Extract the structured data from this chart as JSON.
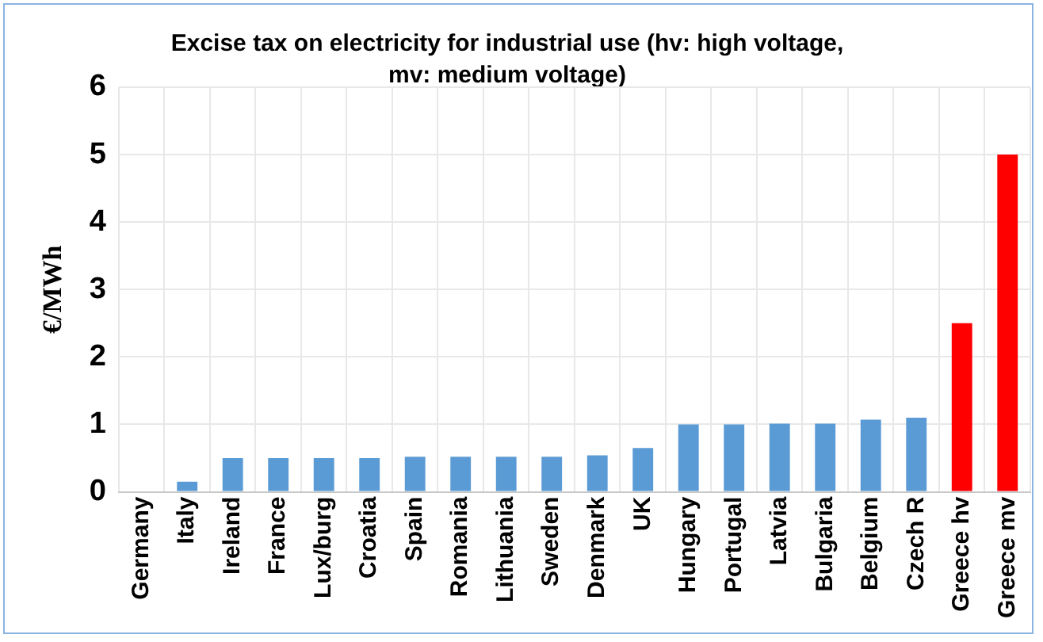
{
  "chart_data": {
    "type": "bar",
    "title": "Excise tax on electricity for industrial use (hv: high voltage, mv: medium voltage)",
    "ylabel": "€/MWh",
    "categories": [
      "Germany",
      "Italy",
      "Ireland",
      "France",
      "Lux/burg",
      "Croatia",
      "Spain",
      "Romania",
      "Lithuania",
      "Sweden",
      "Denmark",
      "UK",
      "Hungary",
      "Portugal",
      "Latvia",
      "Bulgaria",
      "Belgium",
      "Czech R",
      "Greece hv",
      "Greece mv"
    ],
    "values": [
      0,
      0.15,
      0.5,
      0.5,
      0.5,
      0.5,
      0.52,
      0.52,
      0.52,
      0.52,
      0.54,
      0.65,
      1.0,
      1.0,
      1.01,
      1.01,
      1.07,
      1.1,
      2.5,
      5.0
    ],
    "colors": [
      "#5b9bd5",
      "#5b9bd5",
      "#5b9bd5",
      "#5b9bd5",
      "#5b9bd5",
      "#5b9bd5",
      "#5b9bd5",
      "#5b9bd5",
      "#5b9bd5",
      "#5b9bd5",
      "#5b9bd5",
      "#5b9bd5",
      "#5b9bd5",
      "#5b9bd5",
      "#5b9bd5",
      "#5b9bd5",
      "#5b9bd5",
      "#5b9bd5",
      "#ff0000",
      "#ff0000"
    ],
    "ylim": [
      0,
      6
    ],
    "yticks": [
      0,
      1,
      2,
      3,
      4,
      5,
      6
    ],
    "grid": true,
    "legend": false
  }
}
